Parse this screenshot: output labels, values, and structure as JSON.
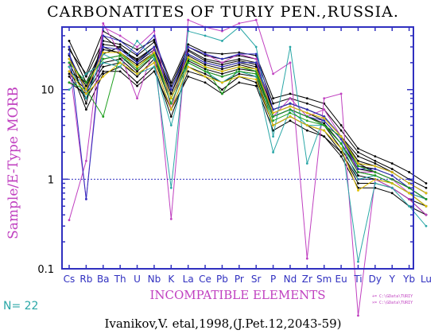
{
  "chart_data": {
    "type": "line",
    "title": "CARBONATITES OF TURIY PEN.,RUSSIA.",
    "ylabel": "Sample/E-Type MORB",
    "xlabel": "INCOMPATIBLE ELEMENTS",
    "y_scale": "log",
    "ylim": [
      0.1,
      50
    ],
    "y_ticks": [
      "0.1",
      "1",
      "10"
    ],
    "reference_line": 1,
    "categories": [
      "Cs",
      "Rb",
      "Ba",
      "Th",
      "U",
      "Nb",
      "K",
      "La",
      "Ce",
      "Pb",
      "Pr",
      "Sr",
      "P",
      "Nd",
      "Zr",
      "Sm",
      "Eu",
      "Ti",
      "Dy",
      "Y",
      "Yb",
      "Lu"
    ],
    "n_label": "N= 22",
    "citation": "Ivanikov,V. etal,1998,(J.Pet.12,2043-59)",
    "legend": [
      "+= C:\\GData\\TURIY",
      "×= C:\\GData\\TURIY"
    ],
    "series": [
      {
        "color": "#000000",
        "values": [
          30,
          12,
          30,
          25,
          18,
          25,
          8,
          22,
          18,
          16,
          18,
          16,
          6,
          7,
          6,
          5,
          3,
          1.5,
          1.2,
          1.0,
          0.8,
          0.6
        ]
      },
      {
        "color": "#000000",
        "values": [
          20,
          8,
          25,
          30,
          20,
          28,
          9,
          25,
          20,
          18,
          20,
          18,
          5,
          6,
          5,
          4,
          2.5,
          1.2,
          1.1,
          0.9,
          0.7,
          0.5
        ]
      },
      {
        "color": "#000000",
        "values": [
          15,
          10,
          20,
          22,
          15,
          20,
          6,
          18,
          15,
          12,
          15,
          14,
          4,
          5,
          4,
          3.5,
          2,
          1.0,
          1.0,
          0.8,
          0.6,
          0.5
        ]
      },
      {
        "color": "#000000",
        "values": [
          25,
          7,
          40,
          28,
          22,
          30,
          10,
          28,
          22,
          20,
          22,
          20,
          6,
          7,
          6,
          5,
          3,
          1.8,
          1.5,
          1.2,
          0.9,
          0.7
        ]
      },
      {
        "color": "#000000",
        "values": [
          12,
          9,
          18,
          20,
          14,
          22,
          7,
          20,
          16,
          14,
          16,
          15,
          5,
          6,
          5,
          4,
          2.2,
          1.1,
          1.0,
          0.9,
          0.7,
          0.6
        ]
      },
      {
        "color": "#000000",
        "values": [
          35,
          14,
          35,
          32,
          24,
          34,
          11,
          30,
          24,
          22,
          24,
          22,
          7,
          8,
          7,
          6,
          3.5,
          2.0,
          1.6,
          1.3,
          1.0,
          0.8
        ]
      },
      {
        "color": "#000000",
        "values": [
          18,
          6,
          15,
          18,
          12,
          18,
          5,
          16,
          14,
          10,
          14,
          12,
          4,
          5,
          4,
          3,
          2,
          0.9,
          0.9,
          0.8,
          0.6,
          0.4
        ]
      },
      {
        "color": "#000000",
        "values": [
          22,
          11,
          28,
          26,
          19,
          26,
          8,
          24,
          19,
          17,
          19,
          17,
          5.5,
          6.5,
          5.5,
          4.5,
          2.8,
          1.4,
          1.3,
          1.1,
          0.8,
          0.6
        ]
      },
      {
        "color": "#000000",
        "values": [
          28,
          15,
          45,
          35,
          28,
          36,
          12,
          32,
          26,
          25,
          26,
          24,
          8,
          9,
          8,
          7,
          4,
          2.2,
          1.8,
          1.5,
          1.2,
          0.9
        ]
      },
      {
        "color": "#000000",
        "values": [
          14,
          8,
          16,
          16,
          11,
          16,
          6,
          14,
          12,
          9,
          12,
          11,
          3.5,
          4.5,
          3.5,
          3,
          1.8,
          0.8,
          0.8,
          0.7,
          0.5,
          0.4
        ]
      },
      {
        "color": "#000000",
        "values": [
          24,
          10,
          32,
          30,
          21,
          30,
          9,
          27,
          21,
          19,
          21,
          19,
          6,
          7,
          6,
          5,
          3,
          1.6,
          1.4,
          1.2,
          0.9,
          0.7
        ]
      },
      {
        "color": "#000000",
        "values": [
          16,
          12,
          22,
          24,
          16,
          24,
          8,
          21,
          17,
          15,
          17,
          16,
          5,
          6,
          5,
          4.2,
          2.5,
          1.3,
          1.2,
          1.0,
          0.8,
          0.6
        ]
      },
      {
        "color": "#c040c0",
        "values": [
          0.35,
          1.6,
          55,
          25,
          8,
          30,
          0.36,
          60,
          50,
          45,
          55,
          60,
          15,
          20,
          0.13,
          8,
          9,
          0.03,
          1.0,
          0.8,
          0.6,
          0.4
        ]
      },
      {
        "color": "#c040c0",
        "values": [
          20,
          0.6,
          50,
          40,
          30,
          45,
          6,
          30,
          25,
          20,
          25,
          22,
          5,
          8,
          5,
          6,
          3,
          1.2,
          1.2,
          1.0,
          0.7,
          0.5
        ]
      },
      {
        "color": "#2aa7a7",
        "values": [
          10,
          15,
          20,
          18,
          35,
          22,
          0.8,
          45,
          40,
          35,
          50,
          30,
          3,
          30,
          1.5,
          5,
          3,
          0.12,
          0.9,
          0.8,
          0.5,
          0.3
        ]
      },
      {
        "color": "#2aa7a7",
        "values": [
          18,
          8,
          25,
          20,
          15,
          18,
          4,
          20,
          16,
          12,
          16,
          14,
          2,
          6,
          4,
          4,
          2.5,
          1.0,
          1.1,
          0.9,
          0.7,
          0.6
        ]
      },
      {
        "color": "#3030c0",
        "values": [
          30,
          0.6,
          40,
          35,
          25,
          40,
          10,
          30,
          25,
          22,
          25,
          25,
          6,
          7,
          6,
          5,
          3,
          1.5,
          1.4,
          1.2,
          0.9,
          0.7
        ]
      },
      {
        "color": "#3030c0",
        "values": [
          25,
          9,
          30,
          28,
          20,
          30,
          8,
          25,
          20,
          18,
          20,
          20,
          5,
          6,
          5,
          4.5,
          2.8,
          1.3,
          1.3,
          1.1,
          0.8,
          0.6
        ]
      },
      {
        "color": "#20a020",
        "values": [
          12,
          10,
          5,
          25,
          18,
          25,
          8,
          22,
          18,
          9,
          18,
          16,
          5,
          6,
          5,
          4,
          3,
          1.4,
          1.2,
          1.0,
          0.8,
          0.6
        ]
      },
      {
        "color": "#20a020",
        "values": [
          20,
          12,
          22,
          24,
          17,
          24,
          7,
          20,
          16,
          14,
          16,
          15,
          4.5,
          5.5,
          4.5,
          4,
          2.5,
          1.2,
          1.1,
          0.9,
          0.7,
          0.5
        ]
      },
      {
        "color": "#e0c000",
        "values": [
          16,
          9,
          14,
          20,
          15,
          20,
          6,
          18,
          14,
          12,
          14,
          13,
          4,
          5,
          4,
          3.5,
          2.2,
          0.75,
          1.0,
          0.9,
          0.7,
          0.5
        ]
      },
      {
        "color": "#e0c000",
        "values": [
          22,
          10,
          26,
          26,
          18,
          26,
          8,
          23,
          18,
          16,
          18,
          17,
          5.5,
          6.5,
          5.5,
          4.8,
          3,
          1.5,
          1.4,
          1.2,
          0.9,
          0.7
        ]
      }
    ]
  }
}
